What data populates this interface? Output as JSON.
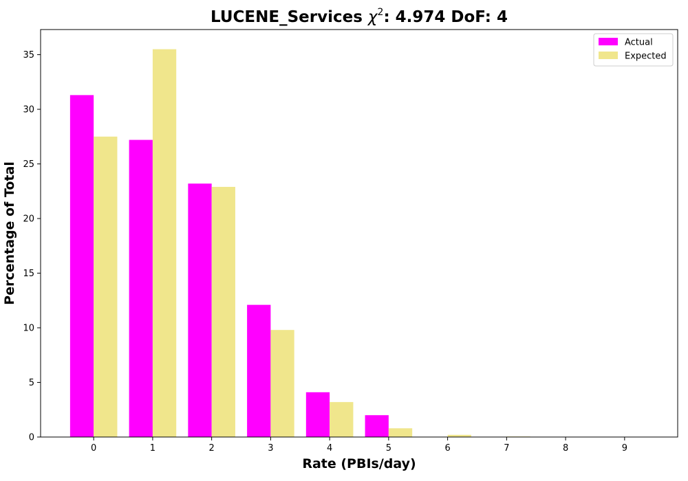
{
  "chart_data": {
    "type": "bar",
    "title": "LUCENE_Services χ²: 4.974 DoF: 4",
    "title_parts": {
      "prefix": "LUCENE_Services ",
      "symbol": "χ",
      "superscript": "2",
      "suffix": ": 4.974 DoF: 4"
    },
    "xlabel": "Rate (PBIs/day)",
    "ylabel": "Percentage of Total",
    "categories": [
      "0",
      "1",
      "2",
      "3",
      "4",
      "5",
      "6",
      "7",
      "8",
      "9"
    ],
    "series": [
      {
        "name": "Actual",
        "color": "#ff00ff",
        "values": [
          31.3,
          27.2,
          23.2,
          12.1,
          4.1,
          2.0,
          0,
          0,
          0,
          0
        ]
      },
      {
        "name": "Expected",
        "color": "#f0e68c",
        "values": [
          27.5,
          35.5,
          22.9,
          9.8,
          3.2,
          0.8,
          0.2,
          0.05,
          0.01,
          0.0
        ]
      }
    ],
    "ylim": [
      0,
      37.3
    ],
    "yticks": [
      "0",
      "5",
      "10",
      "15",
      "20",
      "25",
      "30",
      "35"
    ],
    "xlim": [
      -0.9,
      9.9
    ],
    "grid": false,
    "legend_position": "top-right"
  }
}
